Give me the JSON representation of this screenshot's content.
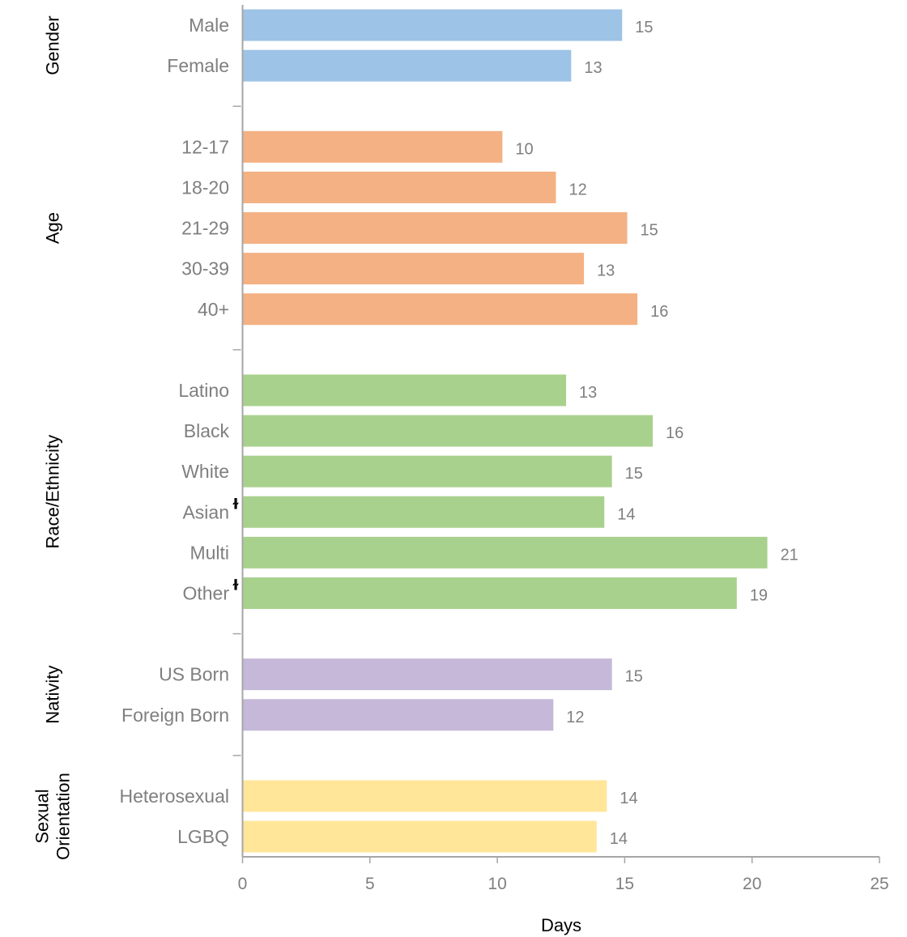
{
  "chart_data": {
    "type": "bar",
    "orientation": "horizontal",
    "xlabel": "Days",
    "xlim": [
      0,
      25
    ],
    "xticks": [
      "0",
      "5",
      "10",
      "15",
      "20",
      "25"
    ],
    "grid": false,
    "groups": [
      {
        "name": "Gender",
        "name_lines": [
          "Gender"
        ],
        "color": "#9dc3e6",
        "items": [
          {
            "label": "Male",
            "value": 14.9,
            "data_label": "15",
            "marker": ""
          },
          {
            "label": "Female",
            "value": 12.9,
            "data_label": "13",
            "marker": ""
          }
        ]
      },
      {
        "name": "Age",
        "name_lines": [
          "Age"
        ],
        "color": "#f4b183",
        "items": [
          {
            "label": "12-17",
            "value": 10.2,
            "data_label": "10",
            "marker": ""
          },
          {
            "label": "18-20",
            "value": 12.3,
            "data_label": "12",
            "marker": ""
          },
          {
            "label": "21-29",
            "value": 15.1,
            "data_label": "15",
            "marker": ""
          },
          {
            "label": "30-39",
            "value": 13.4,
            "data_label": "13",
            "marker": ""
          },
          {
            "label": "40+",
            "value": 15.5,
            "data_label": "16",
            "marker": ""
          }
        ]
      },
      {
        "name": "Race/Ethnicity",
        "name_lines": [
          "Race/Ethnicity"
        ],
        "color": "#a9d18e",
        "items": [
          {
            "label": "Latino",
            "value": 12.7,
            "data_label": "13",
            "marker": ""
          },
          {
            "label": "Black",
            "value": 16.1,
            "data_label": "16",
            "marker": ""
          },
          {
            "label": "White",
            "value": 14.5,
            "data_label": "15",
            "marker": ""
          },
          {
            "label": "Asian",
            "value": 14.2,
            "data_label": "14",
            "marker": "ɫ"
          },
          {
            "label": "Multi",
            "value": 20.6,
            "data_label": "21",
            "marker": ""
          },
          {
            "label": "Other",
            "value": 19.4,
            "data_label": "19",
            "marker": "ɫ"
          }
        ]
      },
      {
        "name": "Nativity",
        "name_lines": [
          "Nativity"
        ],
        "color": "#c5b8d8",
        "items": [
          {
            "label": "US Born",
            "value": 14.5,
            "data_label": "15",
            "marker": ""
          },
          {
            "label": "Foreign Born",
            "value": 12.2,
            "data_label": "12",
            "marker": ""
          }
        ]
      },
      {
        "name": "Sexual Orientation",
        "name_lines": [
          "Sexual",
          "Orientation"
        ],
        "color": "#ffe699",
        "items": [
          {
            "label": "Heterosexual",
            "value": 14.3,
            "data_label": "14",
            "marker": ""
          },
          {
            "label": "LGBQ",
            "value": 13.9,
            "data_label": "14",
            "marker": ""
          }
        ]
      }
    ]
  }
}
